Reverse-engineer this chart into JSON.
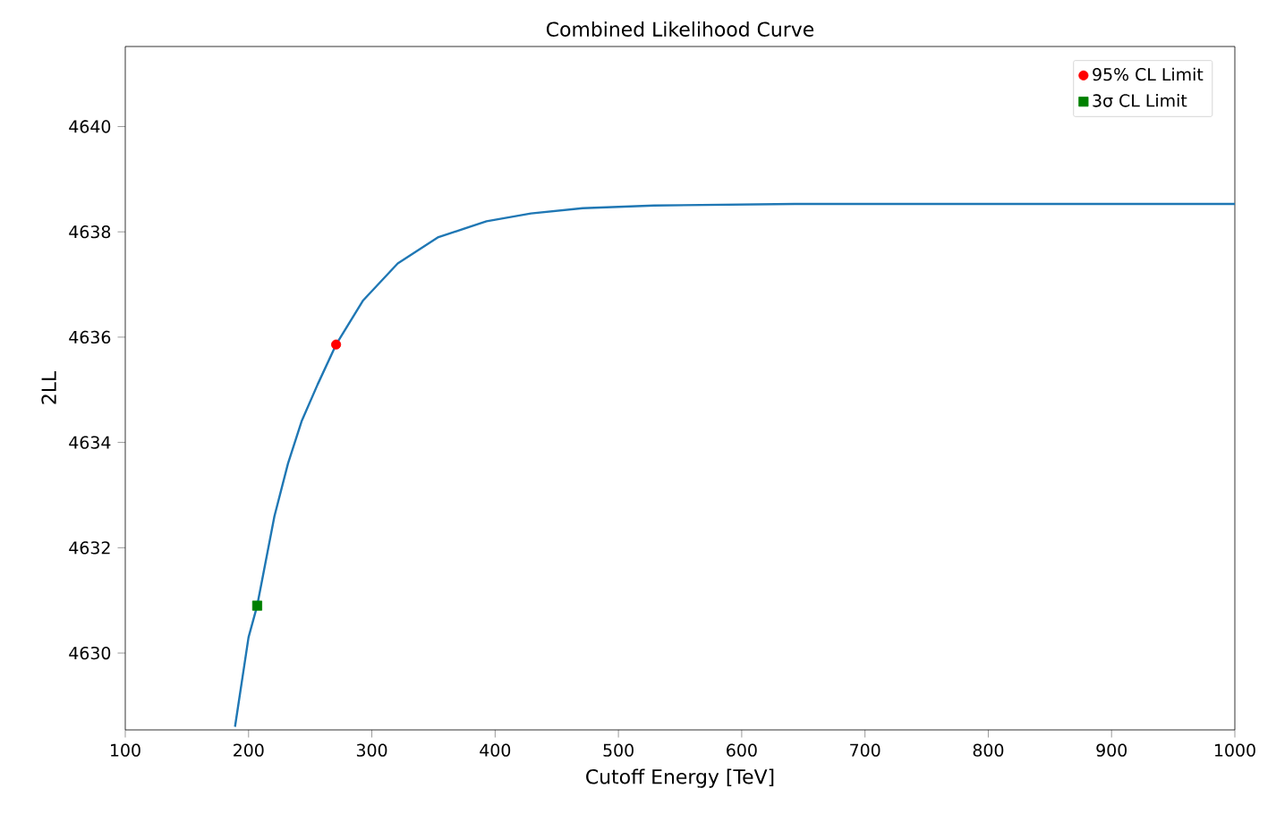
{
  "chart_data": {
    "type": "line",
    "title": "Combined Likelihood Curve",
    "xlabel": "Cutoff Energy [TeV]",
    "ylabel": "2LL",
    "series": [
      {
        "color": "#1f77b4",
        "marker": "none",
        "x": [
          189,
          200,
          207,
          221,
          232,
          243,
          256,
          271,
          293,
          321,
          354,
          393,
          429,
          471,
          529,
          643,
          800,
          1000
        ],
        "values": [
          4628.6,
          4630.3,
          4630.9,
          4632.6,
          4633.6,
          4634.4,
          4635.1,
          4635.86,
          4636.7,
          4637.4,
          4637.9,
          4638.2,
          4638.35,
          4638.45,
          4638.5,
          4638.53,
          4638.53,
          4638.53
        ]
      },
      {
        "type": "scatter",
        "name": "95% CL Limit",
        "color": "#ff0000",
        "marker": "circle",
        "x": [
          271
        ],
        "values": [
          4635.86
        ]
      },
      {
        "type": "scatter",
        "name": "3σ CL Limit",
        "color": "#008000",
        "marker": "square",
        "x": [
          207
        ],
        "values": [
          4630.9
        ]
      }
    ],
    "xlim": [
      100,
      1000
    ],
    "ylim": [
      4628.54,
      4641.52
    ],
    "xticks": [
      100,
      200,
      300,
      400,
      500,
      600,
      700,
      800,
      900,
      1000
    ],
    "yticks": [
      4630,
      4632,
      4634,
      4636,
      4638,
      4640
    ],
    "legend": "top right",
    "grid": false
  }
}
